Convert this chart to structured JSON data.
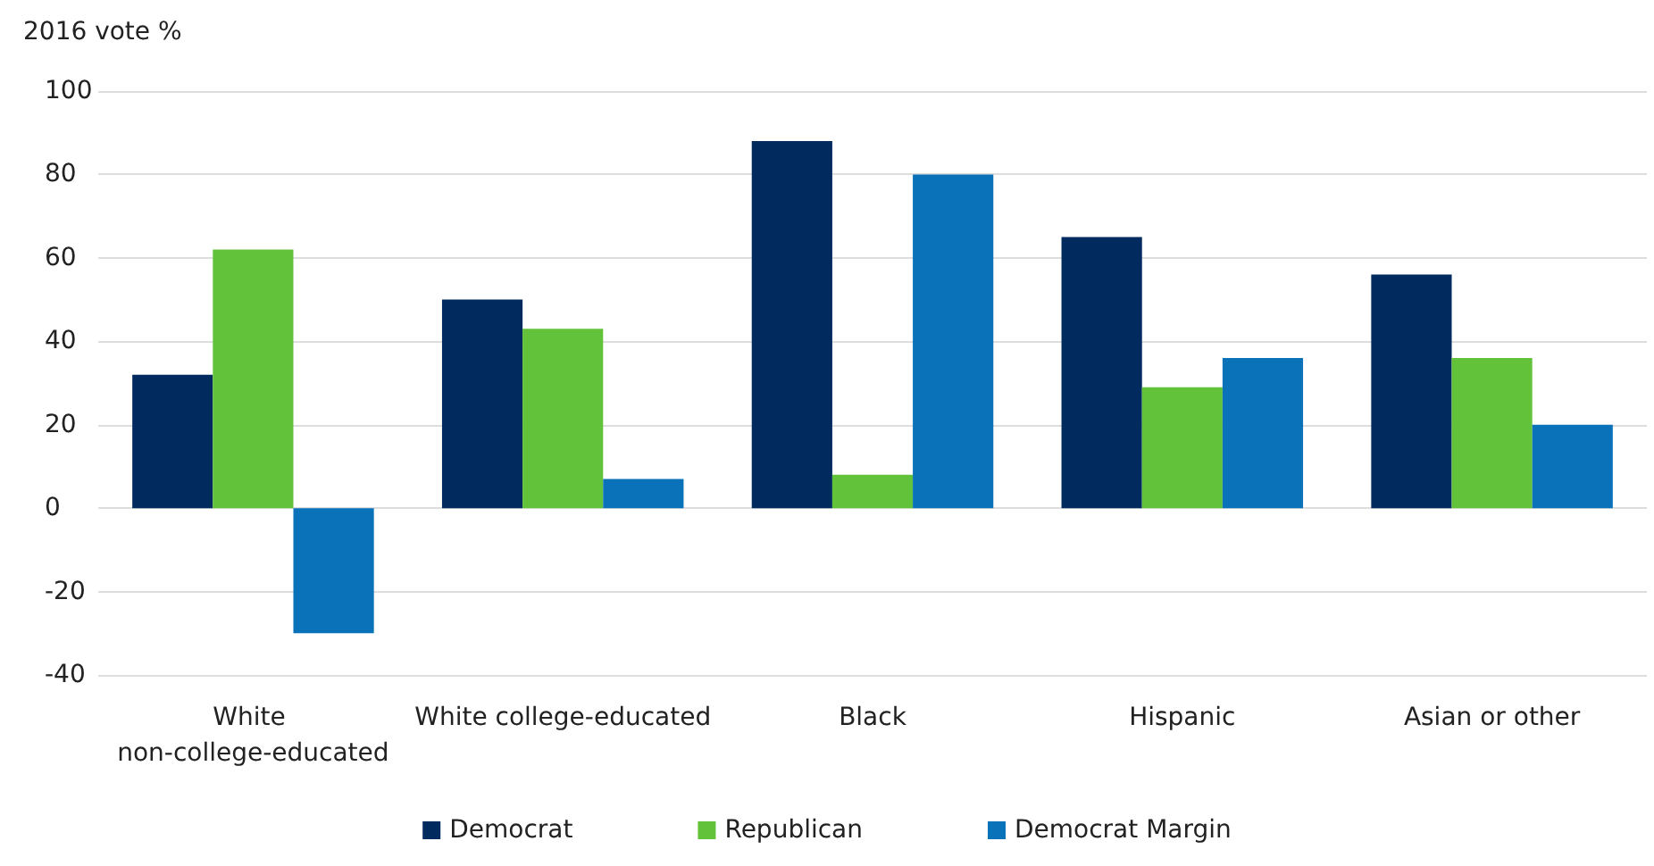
{
  "chart_data": {
    "type": "bar",
    "ylabel": "2016 vote %",
    "categories": [
      "White non-college-educated",
      "White college-educated",
      "Black",
      "Hispanic",
      "Asian or other"
    ],
    "series": [
      {
        "name": "Democrat",
        "color": "#012a5e",
        "values": [
          32,
          50,
          88,
          65,
          56
        ]
      },
      {
        "name": "Republican",
        "color": "#62c33a",
        "values": [
          62,
          43,
          8,
          29,
          36
        ]
      },
      {
        "name": "Democrat Margin",
        "color": "#0a72b8",
        "values": [
          -30,
          7,
          80,
          36,
          20
        ]
      }
    ],
    "ylim": [
      -40,
      100
    ],
    "yticks": [
      -40,
      -20,
      0,
      20,
      40,
      60,
      80,
      100
    ],
    "grid": "y",
    "legend": "bottom"
  }
}
